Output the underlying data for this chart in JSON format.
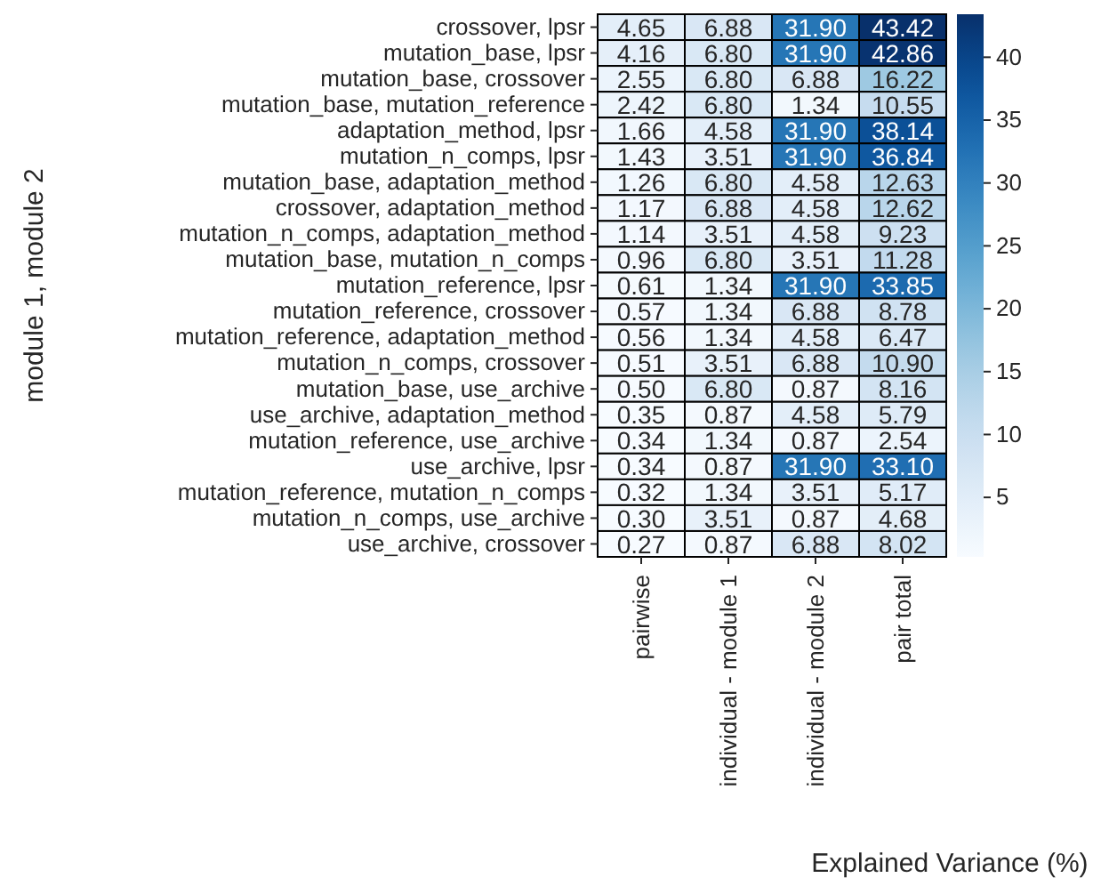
{
  "chart_data": {
    "type": "heatmap",
    "xlabel": "Explained Variance (%)",
    "ylabel": "module 1, module 2",
    "categories": [
      "pairwise",
      "individual - module 1",
      "individual - module 2",
      "pair total"
    ],
    "y_categories": [
      "crossover, lpsr",
      "mutation_base, lpsr",
      "mutation_base, crossover",
      "mutation_base, mutation_reference",
      "adaptation_method, lpsr",
      "mutation_n_comps, lpsr",
      "mutation_base, adaptation_method",
      "crossover, adaptation_method",
      "mutation_n_comps, adaptation_method",
      "mutation_base, mutation_n_comps",
      "mutation_reference, lpsr",
      "mutation_reference, crossover",
      "mutation_reference, adaptation_method",
      "mutation_n_comps, crossover",
      "mutation_base, use_archive",
      "use_archive, adaptation_method",
      "mutation_reference, use_archive",
      "use_archive, lpsr",
      "mutation_reference, mutation_n_comps",
      "mutation_n_comps, use_archive",
      "use_archive, crossover"
    ],
    "cells": [
      [
        4.65,
        6.88,
        31.9,
        43.42
      ],
      [
        4.16,
        6.8,
        31.9,
        42.86
      ],
      [
        2.55,
        6.8,
        6.88,
        16.22
      ],
      [
        2.42,
        6.8,
        1.34,
        10.55
      ],
      [
        1.66,
        4.58,
        31.9,
        38.14
      ],
      [
        1.43,
        3.51,
        31.9,
        36.84
      ],
      [
        1.26,
        6.8,
        4.58,
        12.63
      ],
      [
        1.17,
        6.88,
        4.58,
        12.62
      ],
      [
        1.14,
        3.51,
        4.58,
        9.23
      ],
      [
        0.96,
        6.8,
        3.51,
        11.28
      ],
      [
        0.61,
        1.34,
        31.9,
        33.85
      ],
      [
        0.57,
        1.34,
        6.88,
        8.78
      ],
      [
        0.56,
        1.34,
        4.58,
        6.47
      ],
      [
        0.51,
        3.51,
        6.88,
        10.9
      ],
      [
        0.5,
        6.8,
        0.87,
        8.16
      ],
      [
        0.35,
        0.87,
        4.58,
        5.79
      ],
      [
        0.34,
        1.34,
        0.87,
        2.54
      ],
      [
        0.34,
        0.87,
        31.9,
        33.1
      ],
      [
        0.32,
        1.34,
        3.51,
        5.17
      ],
      [
        0.3,
        3.51,
        0.87,
        4.68
      ],
      [
        0.27,
        0.87,
        6.88,
        8.02
      ]
    ],
    "cell_labels": [
      [
        "4.65",
        "6.88",
        "31.90",
        "43.42"
      ],
      [
        "4.16",
        "6.80",
        "31.90",
        "42.86"
      ],
      [
        "2.55",
        "6.80",
        "6.88",
        "16.22"
      ],
      [
        "2.42",
        "6.80",
        "1.34",
        "10.55"
      ],
      [
        "1.66",
        "4.58",
        "31.90",
        "38.14"
      ],
      [
        "1.43",
        "3.51",
        "31.90",
        "36.84"
      ],
      [
        "1.26",
        "6.80",
        "4.58",
        "12.63"
      ],
      [
        "1.17",
        "6.88",
        "4.58",
        "12.62"
      ],
      [
        "1.14",
        "3.51",
        "4.58",
        "9.23"
      ],
      [
        "0.96",
        "6.80",
        "3.51",
        "11.28"
      ],
      [
        "0.61",
        "1.34",
        "31.90",
        "33.85"
      ],
      [
        "0.57",
        "1.34",
        "6.88",
        "8.78"
      ],
      [
        "0.56",
        "1.34",
        "4.58",
        "6.47"
      ],
      [
        "0.51",
        "3.51",
        "6.88",
        "10.90"
      ],
      [
        "0.50",
        "6.80",
        "0.87",
        "8.16"
      ],
      [
        "0.35",
        "0.87",
        "4.58",
        "5.79"
      ],
      [
        "0.34",
        "1.34",
        "0.87",
        "2.54"
      ],
      [
        "0.34",
        "0.87",
        "31.90",
        "33.10"
      ],
      [
        "0.32",
        "1.34",
        "3.51",
        "5.17"
      ],
      [
        "0.30",
        "3.51",
        "0.87",
        "4.68"
      ],
      [
        "0.27",
        "0.87",
        "6.88",
        "8.02"
      ]
    ],
    "clim": [
      0.27,
      43.42
    ],
    "cticks": [
      5,
      10,
      15,
      20,
      25,
      30,
      35,
      40
    ]
  }
}
